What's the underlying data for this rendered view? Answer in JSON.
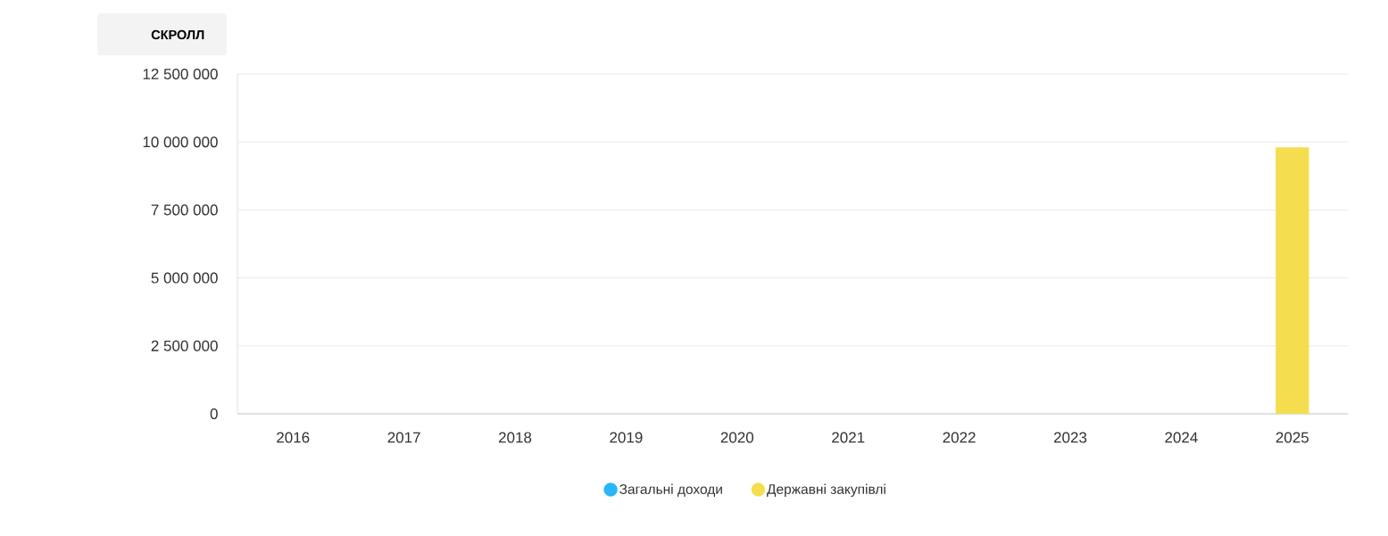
{
  "chart_data": {
    "type": "bar",
    "stacked": true,
    "categories": [
      "2016",
      "2017",
      "2018",
      "2019",
      "2020",
      "2021",
      "2022",
      "2023",
      "2024",
      "2025"
    ],
    "series": [
      {
        "name": "Загальні доходи",
        "color": "#29b6f6",
        "values": [
          null,
          null,
          null,
          null,
          null,
          null,
          null,
          null,
          null,
          null
        ]
      },
      {
        "name": "Державні закупівлі",
        "color": "#f4de50",
        "values": [
          null,
          null,
          null,
          null,
          null,
          null,
          null,
          null,
          null,
          9800000
        ]
      }
    ],
    "ylim": [
      0,
      12500000
    ],
    "yticks": [
      0,
      {
        "value": 2500000,
        "label": "2 500 000"
      },
      {
        "value": 5000000,
        "label": "5 000 000"
      },
      {
        "value": 7500000,
        "label": "7 500 000"
      },
      {
        "value": 10000000,
        "label": "10 000 000"
      },
      {
        "value": 12500000,
        "label": "12 500 000"
      }
    ],
    "grid": "y",
    "legend": "bottom",
    "annotations": [
      "СКРОЛЛ"
    ]
  }
}
